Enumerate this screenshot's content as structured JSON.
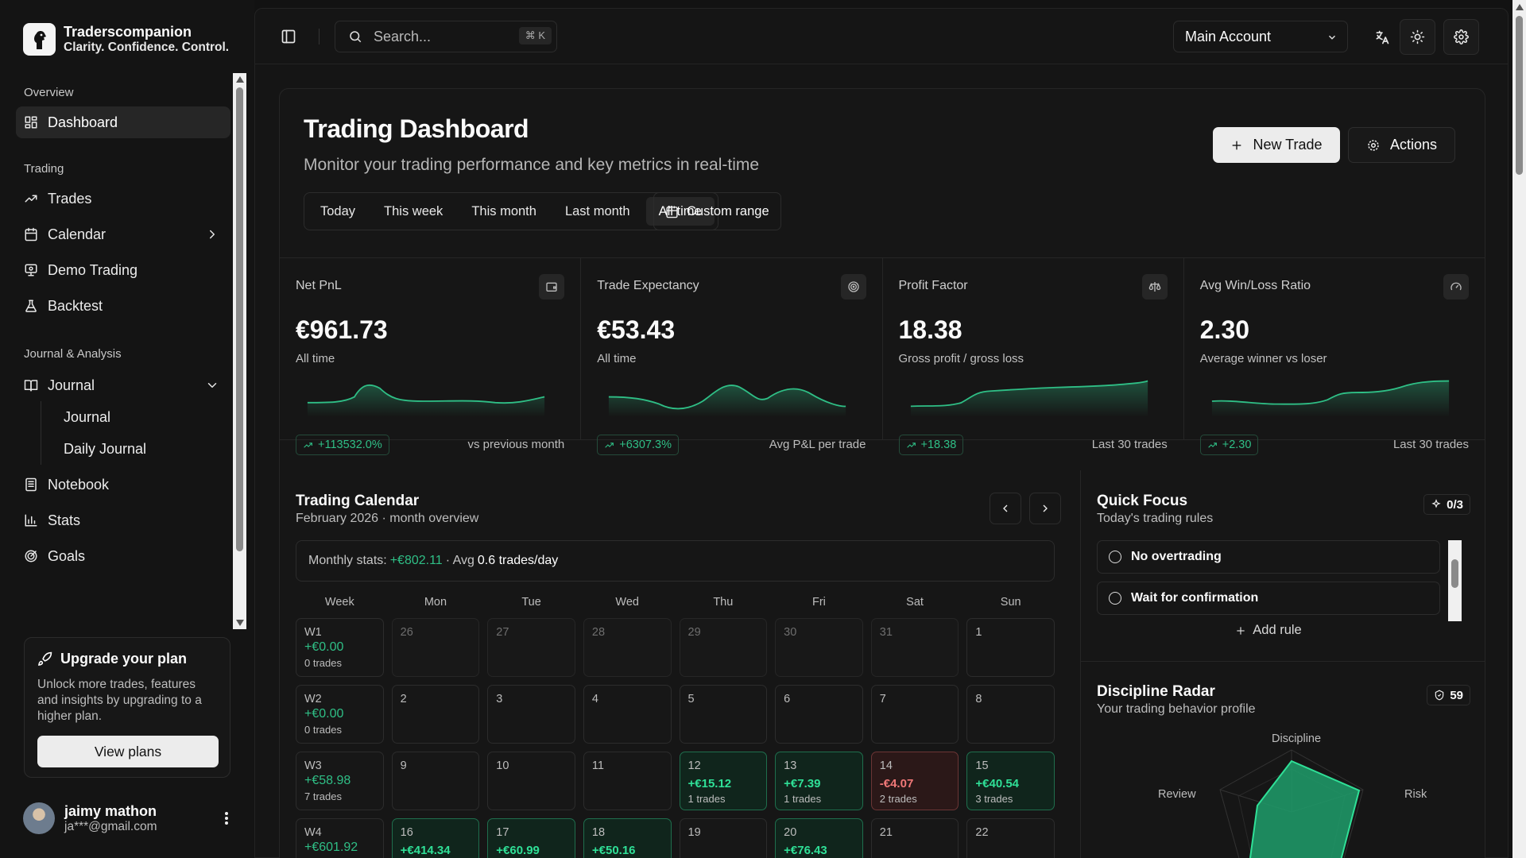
{
  "brand": {
    "name": "Traderscompanion",
    "tagline": "Clarity. Confidence. Control."
  },
  "sidebar": {
    "groups": [
      {
        "label": "Overview"
      },
      {
        "label": "Trading"
      },
      {
        "label": "Journal & Analysis"
      }
    ],
    "items": {
      "dashboard": "Dashboard",
      "trades": "Trades",
      "calendar": "Calendar",
      "demo": "Demo Trading",
      "backtest": "Backtest",
      "journal": "Journal",
      "journal_sub": "Journal",
      "daily_journal": "Daily Journal",
      "notebook": "Notebook",
      "stats": "Stats",
      "goals": "Goals"
    },
    "upgrade": {
      "title": "Upgrade your plan",
      "description": "Unlock more trades, features and insights by upgrading to a higher plan.",
      "button": "View plans"
    },
    "user": {
      "name": "jaimy mathon",
      "email": "ja***@gmail.com"
    }
  },
  "topbar": {
    "search_placeholder": "Search...",
    "search_shortcut": "⌘ K",
    "account": "Main Account"
  },
  "header": {
    "title": "Trading Dashboard",
    "subtitle": "Monitor your trading performance and key metrics in real-time",
    "new_trade": "New Trade",
    "actions": "Actions",
    "ranges": [
      "Today",
      "This week",
      "This month",
      "Last month",
      "All time"
    ],
    "active_range": "All time",
    "custom_range": "Custom range"
  },
  "metrics": [
    {
      "label": "Net PnL",
      "value": "€961.73",
      "sub": "All time",
      "badge": "+113532.0%",
      "note": "vs previous month",
      "icon": "wallet-icon"
    },
    {
      "label": "Trade Expectancy",
      "value": "€53.43",
      "sub": "All time",
      "badge": "+6307.3%",
      "note": "Avg P&L per trade",
      "icon": "target-icon"
    },
    {
      "label": "Profit Factor",
      "value": "18.38",
      "sub": "Gross profit / gross loss",
      "badge": "+18.38",
      "note": "Last 30 trades",
      "icon": "scale-icon"
    },
    {
      "label": "Avg Win/Loss Ratio",
      "value": "2.30",
      "sub": "Average winner vs loser",
      "badge": "+2.30",
      "note": "Last 30 trades",
      "icon": "gauge-icon"
    }
  ],
  "calendar": {
    "title": "Trading Calendar",
    "subtitle": "February 2026 · month overview",
    "monthly_label": "Monthly stats:",
    "monthly_pnl": "+€802.11",
    "monthly_avg_label": "· Avg",
    "monthly_avg": "0.6 trades/day",
    "headers": [
      "Week",
      "Mon",
      "Tue",
      "Wed",
      "Thu",
      "Fri",
      "Sat",
      "Sun"
    ],
    "weeks": [
      {
        "label": "W1",
        "pnl": "+€0.00",
        "trades": "0 trades",
        "days": [
          {
            "d": "26",
            "dim": true
          },
          {
            "d": "27",
            "dim": true
          },
          {
            "d": "28",
            "dim": true
          },
          {
            "d": "29",
            "dim": true
          },
          {
            "d": "30",
            "dim": true
          },
          {
            "d": "31",
            "dim": true
          },
          {
            "d": "1"
          }
        ]
      },
      {
        "label": "W2",
        "pnl": "+€0.00",
        "trades": "0 trades",
        "days": [
          {
            "d": "2"
          },
          {
            "d": "3"
          },
          {
            "d": "4"
          },
          {
            "d": "5"
          },
          {
            "d": "6"
          },
          {
            "d": "7"
          },
          {
            "d": "8"
          }
        ]
      },
      {
        "label": "W3",
        "pnl": "+€58.98",
        "trades": "7 trades",
        "days": [
          {
            "d": "9"
          },
          {
            "d": "10"
          },
          {
            "d": "11"
          },
          {
            "d": "12",
            "pnl": "+€15.12",
            "trades": "1 trades",
            "state": "green"
          },
          {
            "d": "13",
            "pnl": "+€7.39",
            "trades": "1 trades",
            "state": "green"
          },
          {
            "d": "14",
            "pnl": "-€4.07",
            "trades": "2 trades",
            "state": "red"
          },
          {
            "d": "15",
            "pnl": "+€40.54",
            "trades": "3 trades",
            "state": "green"
          }
        ]
      },
      {
        "label": "W4",
        "pnl": "+€601.92",
        "trades": "",
        "days": [
          {
            "d": "16",
            "pnl": "+€414.34",
            "state": "green"
          },
          {
            "d": "17",
            "pnl": "+€60.99",
            "state": "green"
          },
          {
            "d": "18",
            "pnl": "+€50.16",
            "state": "green"
          },
          {
            "d": "19"
          },
          {
            "d": "20",
            "pnl": "+€76.43",
            "state": "green"
          },
          {
            "d": "21"
          },
          {
            "d": "22"
          }
        ]
      }
    ]
  },
  "quick_focus": {
    "title": "Quick Focus",
    "subtitle": "Today's trading rules",
    "count": "0/3",
    "rules": [
      "No overtrading",
      "Wait for confirmation"
    ],
    "add_rule": "Add rule"
  },
  "discipline": {
    "title": "Discipline Radar",
    "subtitle": "Your trading behavior profile",
    "score": "59",
    "axes": [
      "Discipline",
      "Risk",
      "Review"
    ]
  },
  "colors": {
    "positive": "#2fbf86",
    "negative": "#f07878",
    "background": "#121212"
  }
}
